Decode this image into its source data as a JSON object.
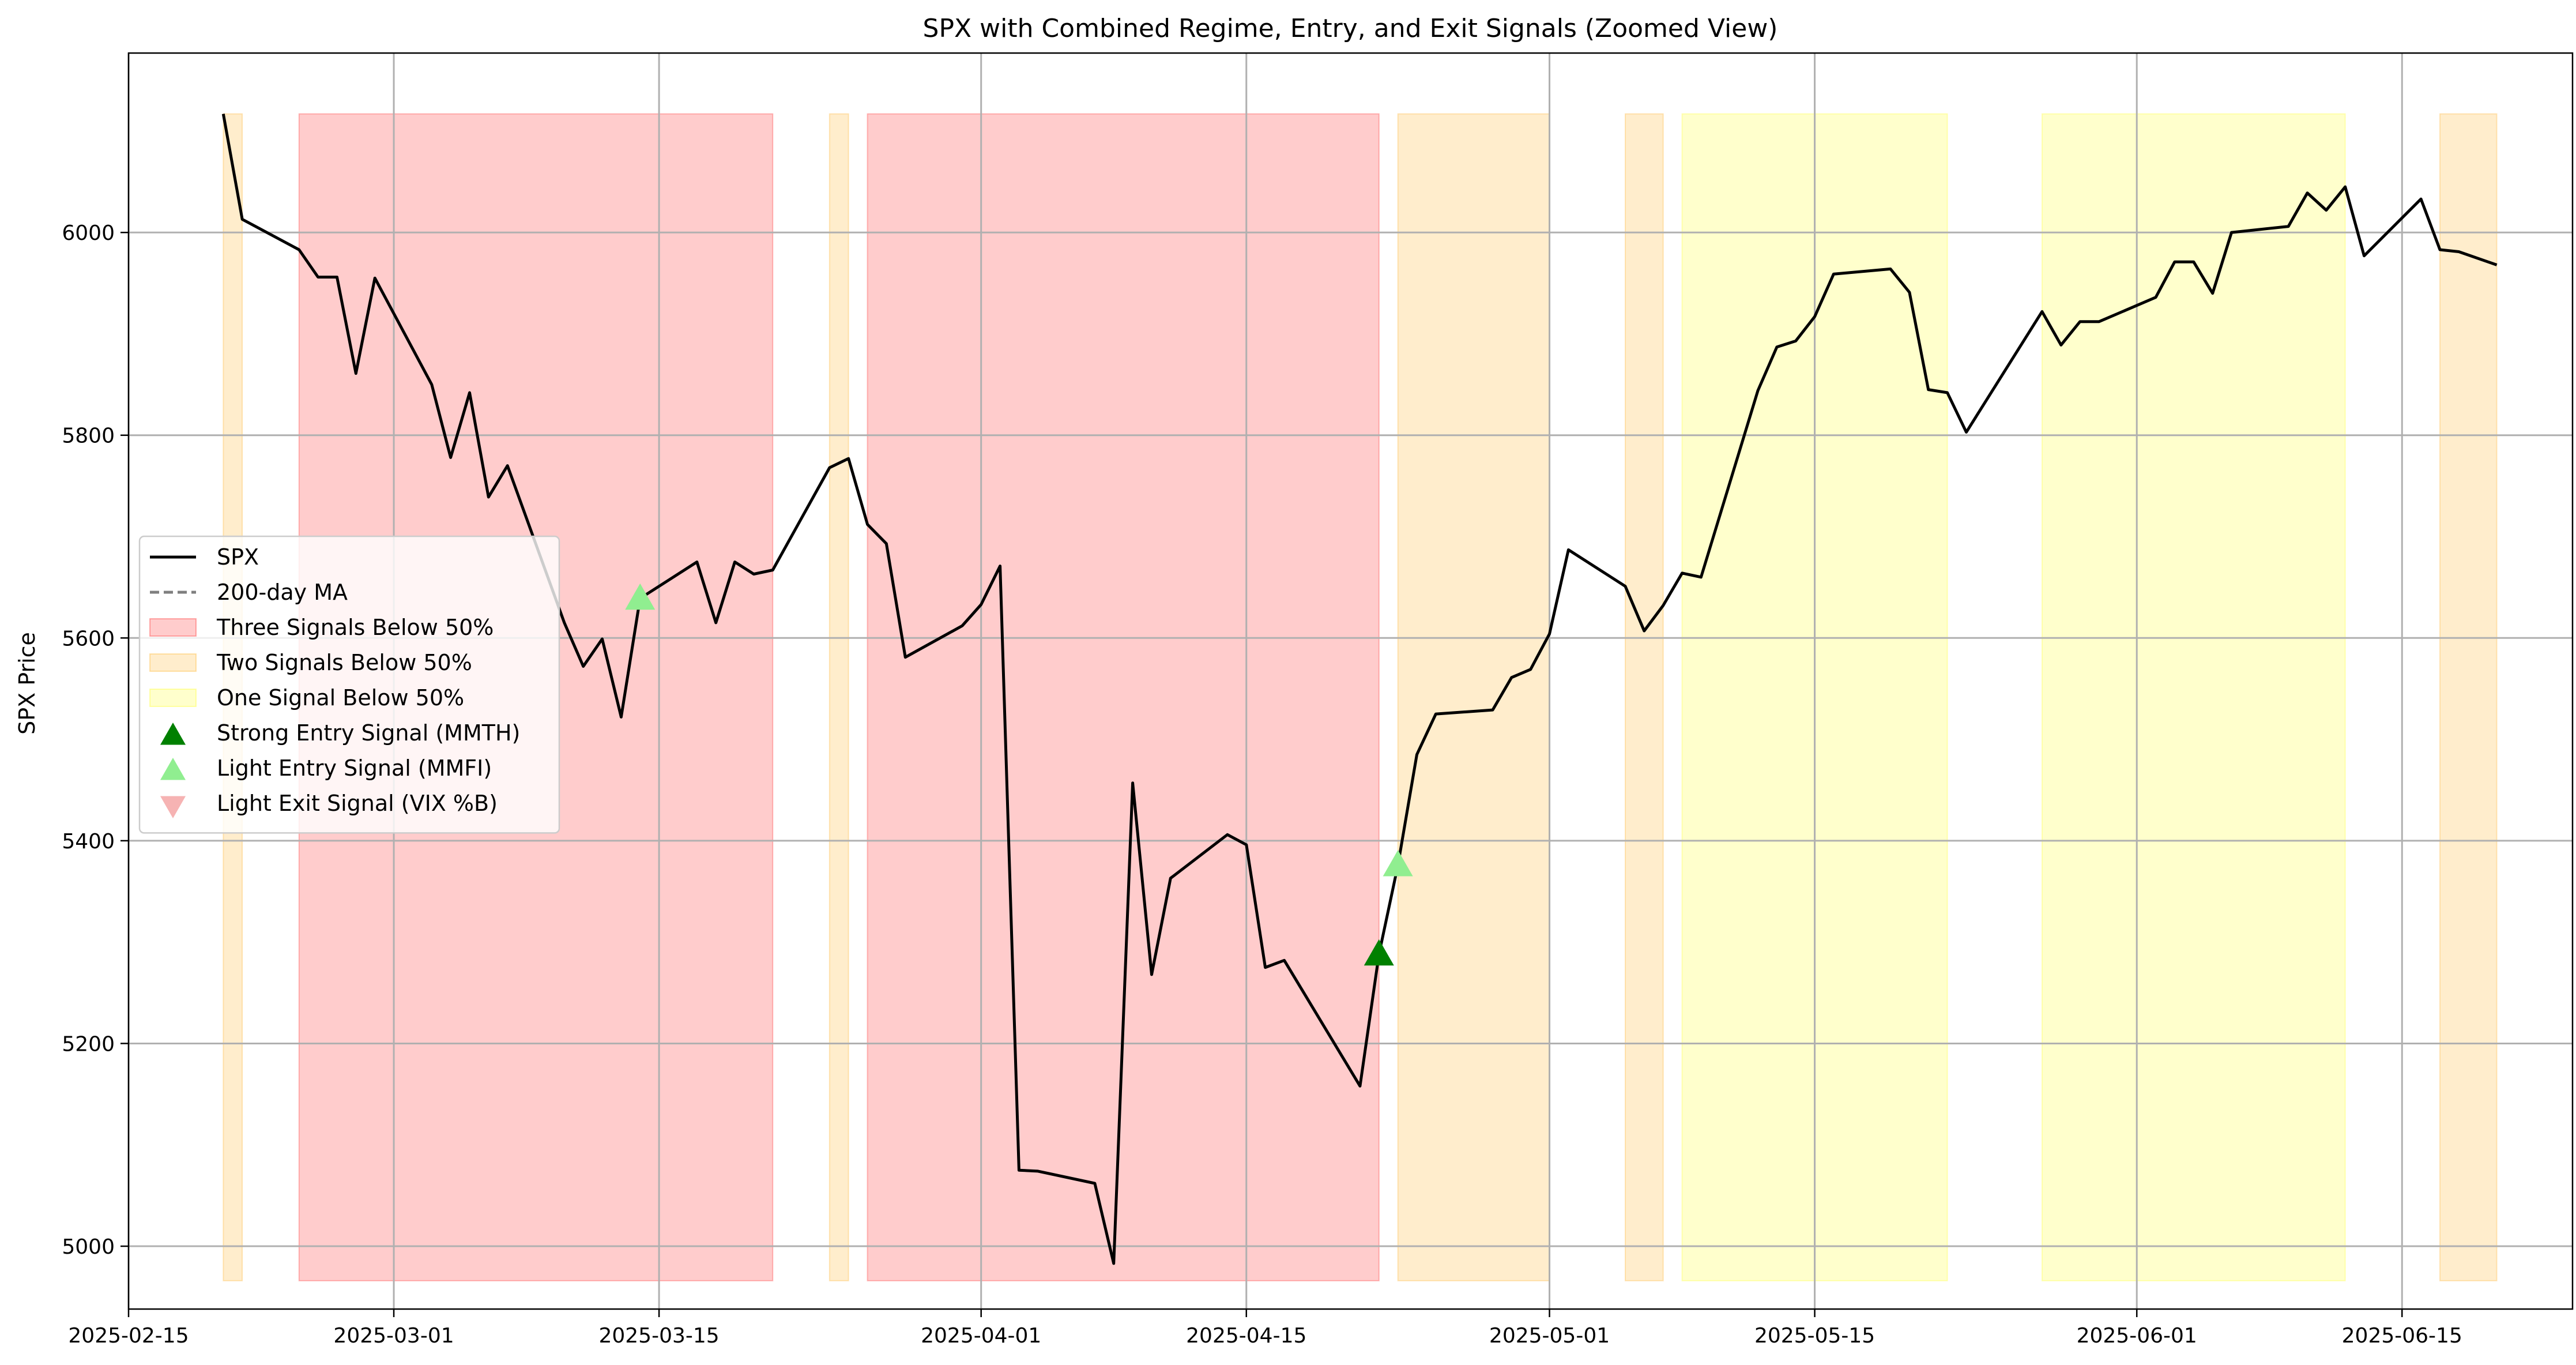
{
  "chart_data": {
    "type": "line",
    "title": "SPX with Combined Regime, Entry, and Exit Signals (Zoomed View)",
    "xlabel": "",
    "ylabel": "SPX Price",
    "xlim": [
      "2025-02-15",
      "2025-06-24"
    ],
    "ylim": [
      4938,
      6177
    ],
    "grid": true,
    "legend_position": "center-left",
    "x_ticks": [
      "2025-02-15",
      "2025-03-01",
      "2025-03-15",
      "2025-04-01",
      "2025-04-15",
      "2025-05-01",
      "2025-05-15",
      "2025-06-01",
      "2025-06-15"
    ],
    "y_ticks": [
      5000,
      5200,
      5400,
      5600,
      5800,
      6000
    ],
    "series": [
      {
        "name": "SPX",
        "color": "#000000",
        "x": [
          "2025-02-20",
          "2025-02-21",
          "2025-02-24",
          "2025-02-25",
          "2025-02-26",
          "2025-02-27",
          "2025-02-28",
          "2025-03-03",
          "2025-03-04",
          "2025-03-05",
          "2025-03-06",
          "2025-03-07",
          "2025-03-10",
          "2025-03-11",
          "2025-03-12",
          "2025-03-13",
          "2025-03-14",
          "2025-03-17",
          "2025-03-18",
          "2025-03-19",
          "2025-03-20",
          "2025-03-21",
          "2025-03-24",
          "2025-03-25",
          "2025-03-26",
          "2025-03-27",
          "2025-03-28",
          "2025-03-31",
          "2025-04-01",
          "2025-04-02",
          "2025-04-03",
          "2025-04-04",
          "2025-04-07",
          "2025-04-08",
          "2025-04-09",
          "2025-04-10",
          "2025-04-11",
          "2025-04-14",
          "2025-04-15",
          "2025-04-16",
          "2025-04-17",
          "2025-04-21",
          "2025-04-22",
          "2025-04-23",
          "2025-04-24",
          "2025-04-25",
          "2025-04-28",
          "2025-04-29",
          "2025-04-30",
          "2025-05-01",
          "2025-05-02",
          "2025-05-05",
          "2025-05-06",
          "2025-05-07",
          "2025-05-08",
          "2025-05-09",
          "2025-05-12",
          "2025-05-13",
          "2025-05-14",
          "2025-05-15",
          "2025-05-16",
          "2025-05-19",
          "2025-05-20",
          "2025-05-21",
          "2025-05-22",
          "2025-05-23",
          "2025-05-27",
          "2025-05-28",
          "2025-05-29",
          "2025-05-30",
          "2025-06-02",
          "2025-06-03",
          "2025-06-04",
          "2025-06-05",
          "2025-06-06",
          "2025-06-09",
          "2025-06-10",
          "2025-06-11",
          "2025-06-12",
          "2025-06-13",
          "2025-06-16",
          "2025-06-17",
          "2025-06-18",
          "2025-06-20"
        ],
        "values": [
          6117,
          6013,
          5983,
          5956,
          5956,
          5861,
          5955,
          5850,
          5778,
          5842,
          5739,
          5770,
          5615,
          5572,
          5599,
          5522,
          5639,
          5675,
          5615,
          5675,
          5663,
          5667,
          5768,
          5777,
          5712,
          5693,
          5581,
          5612,
          5633,
          5671,
          5075,
          5074,
          5062,
          4983,
          5457,
          5268,
          5363,
          5406,
          5396,
          5275,
          5282,
          5158,
          5288,
          5376,
          5485,
          5525,
          5529,
          5561,
          5569,
          5604,
          5687,
          5651,
          5607,
          5632,
          5664,
          5660,
          5844,
          5887,
          5893,
          5917,
          5959,
          5964,
          5941,
          5845,
          5842,
          5803,
          5922,
          5889,
          5912,
          5912,
          5936,
          5971,
          5971,
          5940,
          6000,
          6006,
          6039,
          6022,
          6045,
          5977,
          6033,
          5983,
          5981,
          5968
        ]
      }
    ],
    "legend": [
      {
        "label": "SPX",
        "kind": "line",
        "color": "#000000"
      },
      {
        "label": "200-day MA",
        "kind": "dashed-line",
        "color": "#7f7f7f"
      },
      {
        "label": "Three Signals Below 50%",
        "kind": "patch",
        "color": "#ff0000",
        "alpha": 0.2
      },
      {
        "label": "Two Signals Below 50%",
        "kind": "patch",
        "color": "#ffa500",
        "alpha": 0.2
      },
      {
        "label": "One Signal Below 50%",
        "kind": "patch",
        "color": "#ffff00",
        "alpha": 0.2
      },
      {
        "label": "Strong Entry Signal (MMTH)",
        "kind": "triangle-up",
        "color": "#008000",
        "alpha": 1.0
      },
      {
        "label": "Light Entry Signal (MMFI)",
        "kind": "triangle-up",
        "color": "#90ee90",
        "alpha": 1.0
      },
      {
        "label": "Light Exit Signal (VIX %B)",
        "kind": "triangle-down",
        "color": "#f08080",
        "alpha": 0.6
      }
    ],
    "regime_bands": [
      {
        "start": "2025-02-20",
        "end": "2025-02-21",
        "level": "two",
        "color": "#ffa500",
        "alpha": 0.2
      },
      {
        "start": "2025-02-24",
        "end": "2025-03-21",
        "level": "three",
        "color": "#ff0000",
        "alpha": 0.2
      },
      {
        "start": "2025-03-24",
        "end": "2025-03-25",
        "level": "two",
        "color": "#ffa500",
        "alpha": 0.2
      },
      {
        "start": "2025-03-26",
        "end": "2025-04-22",
        "level": "three",
        "color": "#ff0000",
        "alpha": 0.2
      },
      {
        "start": "2025-04-23",
        "end": "2025-05-01",
        "level": "two",
        "color": "#ffa500",
        "alpha": 0.2
      },
      {
        "start": "2025-05-05",
        "end": "2025-05-07",
        "level": "two",
        "color": "#ffa500",
        "alpha": 0.2
      },
      {
        "start": "2025-05-08",
        "end": "2025-05-22",
        "level": "one",
        "color": "#ffff00",
        "alpha": 0.2
      },
      {
        "start": "2025-05-27",
        "end": "2025-06-12",
        "level": "one",
        "color": "#ffff00",
        "alpha": 0.2
      },
      {
        "start": "2025-06-17",
        "end": "2025-06-20",
        "level": "two",
        "color": "#ffa500",
        "alpha": 0.2
      }
    ],
    "markers": [
      {
        "type": "Strong Entry Signal (MMTH)",
        "x": "2025-04-22",
        "y": 5288,
        "shape": "triangle-up",
        "color": "#008000",
        "alpha": 1.0
      },
      {
        "type": "Light Entry Signal (MMFI)",
        "x": "2025-03-14",
        "y": 5639,
        "shape": "triangle-up",
        "color": "#90ee90",
        "alpha": 1.0
      },
      {
        "type": "Light Entry Signal (MMFI)",
        "x": "2025-04-23",
        "y": 5376,
        "shape": "triangle-up",
        "color": "#90ee90",
        "alpha": 1.0
      }
    ]
  }
}
